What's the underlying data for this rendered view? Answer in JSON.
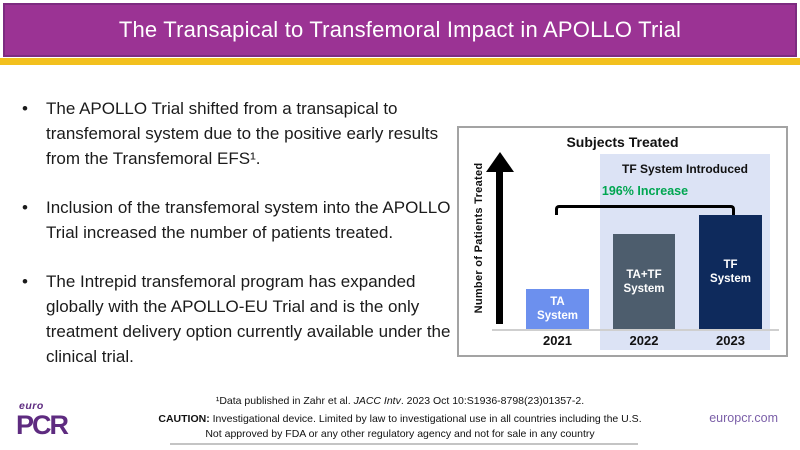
{
  "header": {
    "title": "The Transapical to Transfemoral Impact in APOLLO Trial",
    "banner_color": "#9B3394",
    "banner_border_color": "#7D2B80",
    "accent_strip_color": "#F2C01E"
  },
  "bullets": {
    "marker": "•",
    "items": [
      {
        "text": "The APOLLO Trial shifted from a transapical to transfemoral system due to the positive early results from the Transfemoral EFS¹."
      },
      {
        "text": "Inclusion of the transfemoral system into the APOLLO Trial increased the number of patients treated."
      },
      {
        "text": "The Intrepid transfemoral program has expanded globally with the APOLLO-EU Trial and is the only treatment delivery option currently available under the clinical trial."
      }
    ]
  },
  "chart": {
    "title": "Subjects Treated",
    "y_axis_label": "Number of Patients Treated",
    "region_label": "TF System Introduced",
    "increase_label": "196% Increase",
    "increase_color": "#00A651",
    "highlight_region_color": "#DCE3F5",
    "bars": [
      {
        "label": "TA\nSystem",
        "year": "2021",
        "color": "#6C90EE"
      },
      {
        "label": "TA+TF\nSystem",
        "year": "2022",
        "color": "#4D5D6D"
      },
      {
        "label": "TF\nSystem",
        "year": "2023",
        "color": "#0E2A5C"
      }
    ]
  },
  "chart_data": {
    "type": "bar",
    "title": "Subjects Treated",
    "xlabel": "",
    "ylabel": "Number of Patients Treated",
    "categories": [
      "2021",
      "2022",
      "2023"
    ],
    "bar_labels": [
      "TA System",
      "TA+TF System",
      "TF System"
    ],
    "values": [
      1.0,
      2.4,
      2.96
    ],
    "values_note": "value axis unlabeled; heights are relative, 2023 is +196% vs 2021",
    "bar_colors": [
      "#6C90EE",
      "#4D5D6D",
      "#0E2A5C"
    ],
    "annotations": [
      "196% Increase (bracket spanning 2021 to 2023)",
      "TF System Introduced (shaded region over 2022 and 2023)"
    ],
    "legend": "none",
    "grid": false
  },
  "footnote": {
    "prefix": "¹Data published in Zahr et al. ",
    "journal": "JACC Intv",
    "suffix": ". 2023 Oct 10:S1936-8798(23)01357-2."
  },
  "caution": {
    "label": "CAUTION:",
    "line1": " Investigational device. Limited by law to investigational use in all countries including the U.S.",
    "line2": "Not approved by FDA or any other regulatory agency and not for sale in any country"
  },
  "footer": {
    "logo_top": "euro",
    "logo_main": "PCR",
    "logo_color": "#5E2B80",
    "website": "europcr.com"
  }
}
